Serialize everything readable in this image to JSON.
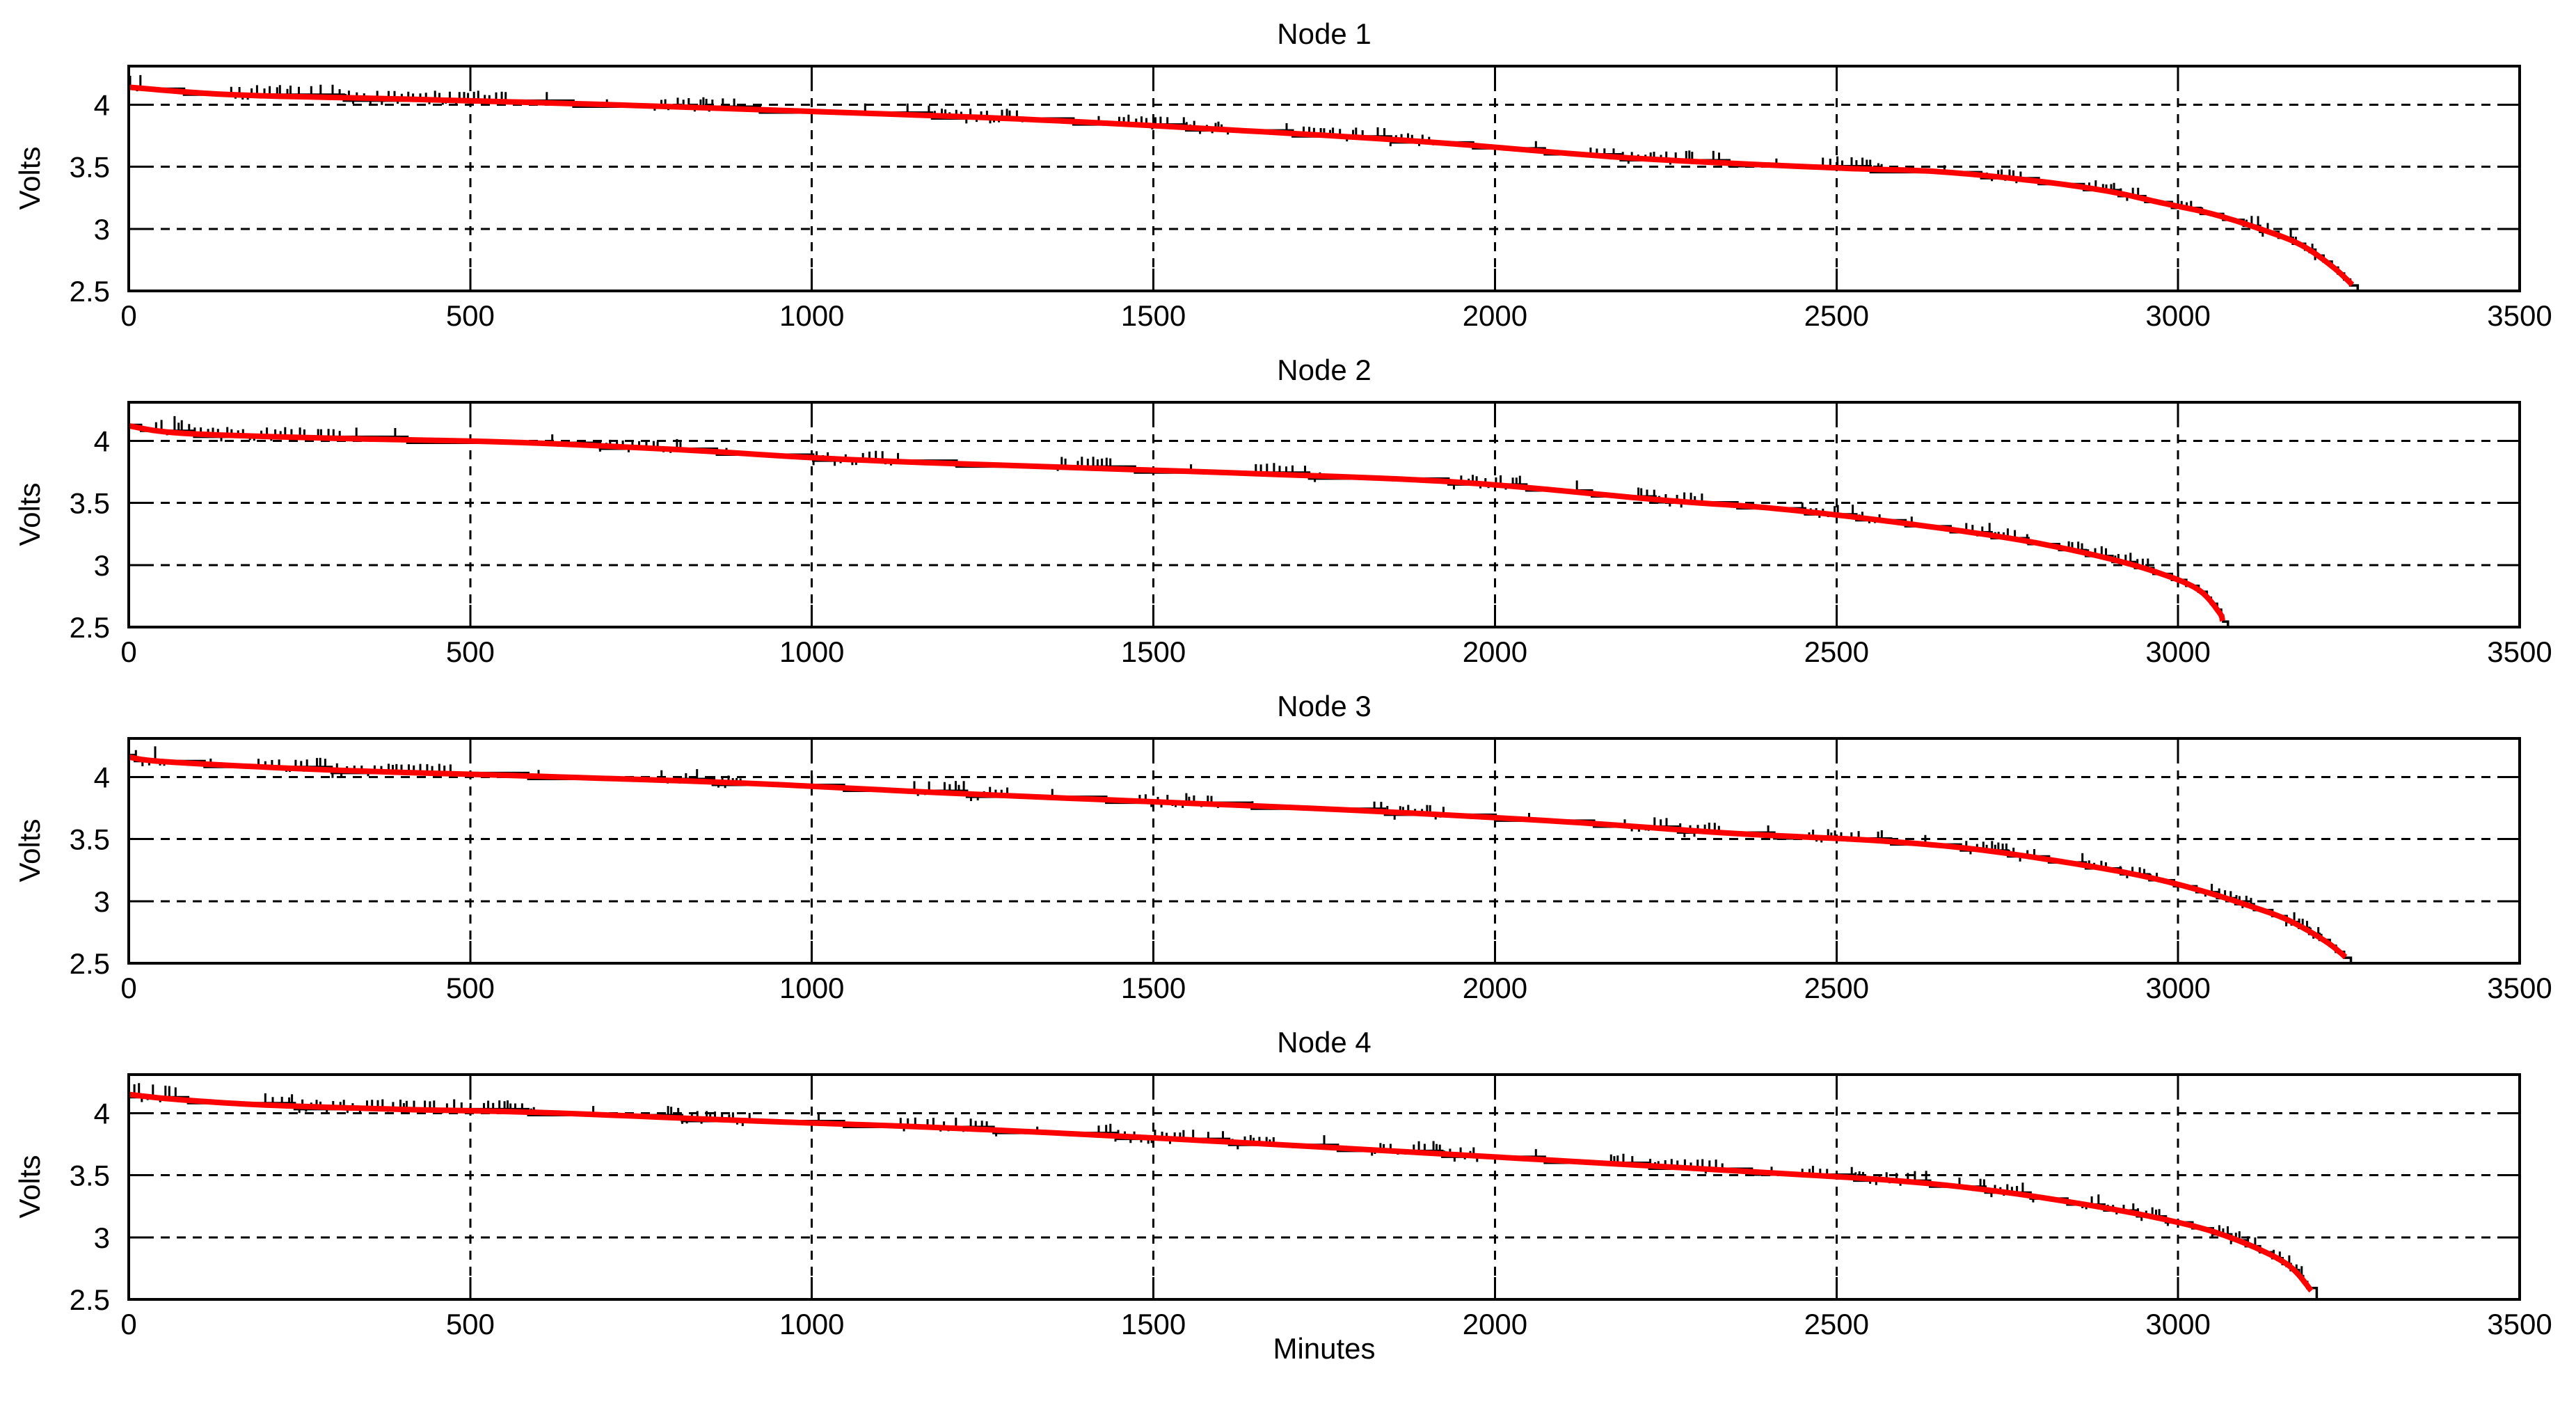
{
  "figure": {
    "background": "#ffffff",
    "axis_color": "#000000",
    "grid_color": "#000000",
    "measured_color": "#000000",
    "fitted_color": "#ff0000",
    "xlabel": "Minutes",
    "ylabel": "Volts",
    "xlim": [
      0,
      3500
    ],
    "ylim": [
      2.5,
      4.31
    ],
    "xticks": [
      0,
      500,
      1000,
      1500,
      2000,
      2500,
      3000,
      3500
    ],
    "yticks": [
      2.5,
      3,
      3.5,
      4
    ],
    "grid": "dashed",
    "noise": {
      "spike_up_v": 0.062,
      "spike_down_v": 0.028,
      "quant_step_v": 0.048
    }
  },
  "chart_data": [
    {
      "type": "line",
      "title": "Node 1",
      "xlabel": "",
      "ylabel": "Volts",
      "xlim": [
        0,
        3500
      ],
      "ylim": [
        2.5,
        4.31
      ],
      "xticks": [
        0,
        500,
        1000,
        1500,
        2000,
        2500,
        3000,
        3500
      ],
      "yticks": [
        2.5,
        3,
        3.5,
        4
      ],
      "end_minutes": 3255,
      "series": [
        {
          "name": "measured voltage",
          "color": "#000000",
          "style": "noisy-steps"
        },
        {
          "name": "fitted curve",
          "color": "#ff0000",
          "points": [
            [
              0,
              4.14
            ],
            [
              150,
              4.08
            ],
            [
              400,
              4.045
            ],
            [
              700,
              4.0
            ],
            [
              1000,
              3.945
            ],
            [
              1300,
              3.885
            ],
            [
              1600,
              3.8
            ],
            [
              1900,
              3.7
            ],
            [
              2200,
              3.57
            ],
            [
              2500,
              3.49
            ],
            [
              2650,
              3.46
            ],
            [
              2800,
              3.38
            ],
            [
              2900,
              3.3
            ],
            [
              2975,
              3.21
            ],
            [
              3050,
              3.12
            ],
            [
              3125,
              2.99
            ],
            [
              3180,
              2.87
            ],
            [
              3225,
              2.7
            ],
            [
              3255,
              2.55
            ]
          ]
        }
      ],
      "noise_bursts": [
        [
          2,
          20
        ],
        [
          150,
          560
        ],
        [
          770,
          890
        ],
        [
          1140,
          1310
        ],
        [
          1450,
          1610
        ],
        [
          1720,
          1910
        ],
        [
          2140,
          2330
        ],
        [
          2480,
          2570
        ],
        [
          2720,
          2770
        ],
        [
          2870,
          2945
        ],
        [
          3000,
          3040
        ],
        [
          3085,
          3135
        ],
        [
          3165,
          3215
        ]
      ],
      "single_spikes": [
        612,
        700,
        1078,
        1420,
        1695,
        2060,
        2412,
        2658
      ]
    },
    {
      "type": "line",
      "title": "Node 2",
      "xlabel": "",
      "ylabel": "Volts",
      "xlim": [
        0,
        3500
      ],
      "ylim": [
        2.5,
        4.31
      ],
      "xticks": [
        0,
        500,
        1000,
        1500,
        2000,
        2500,
        3000,
        3500
      ],
      "yticks": [
        2.5,
        3,
        3.5,
        4
      ],
      "end_minutes": 3065,
      "series": [
        {
          "name": "measured voltage",
          "color": "#000000",
          "style": "noisy-steps"
        },
        {
          "name": "fitted curve",
          "color": "#ff0000",
          "points": [
            [
              0,
              4.12
            ],
            [
              80,
              4.06
            ],
            [
              300,
              4.02
            ],
            [
              550,
              3.99
            ],
            [
              800,
              3.93
            ],
            [
              1050,
              3.85
            ],
            [
              1350,
              3.79
            ],
            [
              1650,
              3.735
            ],
            [
              1950,
              3.665
            ],
            [
              2250,
              3.52
            ],
            [
              2400,
              3.46
            ],
            [
              2550,
              3.37
            ],
            [
              2700,
              3.26
            ],
            [
              2800,
              3.17
            ],
            [
              2900,
              3.05
            ],
            [
              2975,
              2.93
            ],
            [
              3030,
              2.8
            ],
            [
              3060,
              2.62
            ],
            [
              3065,
              2.55
            ]
          ]
        }
      ],
      "noise_bursts": [
        [
          40,
          340
        ],
        [
          690,
          810
        ],
        [
          990,
          1130
        ],
        [
          1360,
          1450
        ],
        [
          1650,
          1745
        ],
        [
          1940,
          2040
        ],
        [
          2210,
          2310
        ],
        [
          2450,
          2565
        ],
        [
          2690,
          2780
        ],
        [
          2840,
          2960
        ]
      ],
      "single_spikes": [
        390,
        620,
        875,
        1210,
        1555,
        2120,
        2610,
        3000
      ]
    },
    {
      "type": "line",
      "title": "Node 3",
      "xlabel": "",
      "ylabel": "Volts",
      "xlim": [
        0,
        3500
      ],
      "ylim": [
        2.5,
        4.31
      ],
      "xticks": [
        0,
        500,
        1000,
        1500,
        2000,
        2500,
        3000,
        3500
      ],
      "yticks": [
        2.5,
        3,
        3.5,
        4
      ],
      "end_minutes": 3245,
      "series": [
        {
          "name": "measured voltage",
          "color": "#000000",
          "style": "noisy-steps"
        },
        {
          "name": "fitted curve",
          "color": "#ff0000",
          "points": [
            [
              0,
              4.16
            ],
            [
              60,
              4.12
            ],
            [
              300,
              4.055
            ],
            [
              600,
              4.005
            ],
            [
              900,
              3.95
            ],
            [
              1200,
              3.87
            ],
            [
              1500,
              3.8
            ],
            [
              1800,
              3.73
            ],
            [
              2100,
              3.64
            ],
            [
              2350,
              3.545
            ],
            [
              2550,
              3.49
            ],
            [
              2700,
              3.42
            ],
            [
              2850,
              3.3
            ],
            [
              2950,
              3.2
            ],
            [
              3030,
              3.09
            ],
            [
              3100,
              2.97
            ],
            [
              3160,
              2.85
            ],
            [
              3215,
              2.68
            ],
            [
              3245,
              2.55
            ]
          ]
        }
      ],
      "noise_bursts": [
        [
          0,
          60
        ],
        [
          190,
          480
        ],
        [
          780,
          900
        ],
        [
          1150,
          1290
        ],
        [
          1480,
          1610
        ],
        [
          1810,
          1930
        ],
        [
          2190,
          2330
        ],
        [
          2460,
          2570
        ],
        [
          2690,
          2790
        ],
        [
          2860,
          2970
        ],
        [
          3040,
          3110
        ],
        [
          3150,
          3215
        ]
      ],
      "single_spikes": [
        120,
        600,
        1000,
        1352,
        1645,
        2050,
        2400,
        2630
      ]
    },
    {
      "type": "line",
      "title": "Node 4",
      "xlabel": "Minutes",
      "ylabel": "Volts",
      "xlim": [
        0,
        3500
      ],
      "ylim": [
        2.5,
        4.31
      ],
      "xticks": [
        0,
        500,
        1000,
        1500,
        2000,
        2500,
        3000,
        3500
      ],
      "yticks": [
        2.5,
        3,
        3.5,
        4
      ],
      "end_minutes": 3195,
      "series": [
        {
          "name": "measured voltage",
          "color": "#000000",
          "style": "noisy-steps"
        },
        {
          "name": "fitted curve",
          "color": "#ff0000",
          "points": [
            [
              0,
              4.15
            ],
            [
              70,
              4.11
            ],
            [
              200,
              4.065
            ],
            [
              400,
              4.03
            ],
            [
              600,
              4.005
            ],
            [
              900,
              3.94
            ],
            [
              1200,
              3.88
            ],
            [
              1500,
              3.8
            ],
            [
              1800,
              3.71
            ],
            [
              2100,
              3.615
            ],
            [
              2400,
              3.52
            ],
            [
              2600,
              3.45
            ],
            [
              2750,
              3.36
            ],
            [
              2900,
              3.23
            ],
            [
              3000,
              3.12
            ],
            [
              3060,
              3.03
            ],
            [
              3120,
              2.9
            ],
            [
              3165,
              2.76
            ],
            [
              3195,
              2.57
            ]
          ]
        }
      ],
      "noise_bursts": [
        [
          0,
          70
        ],
        [
          200,
          600
        ],
        [
          780,
          910
        ],
        [
          1130,
          1270
        ],
        [
          1420,
          1680
        ],
        [
          1820,
          1980
        ],
        [
          2170,
          2340
        ],
        [
          2450,
          2640
        ],
        [
          2700,
          2790
        ],
        [
          2860,
          2990
        ],
        [
          3050,
          3120
        ],
        [
          3140,
          3195
        ]
      ],
      "single_spikes": [
        680,
        1010,
        1330,
        1750,
        2060,
        2405,
        2680
      ]
    }
  ]
}
